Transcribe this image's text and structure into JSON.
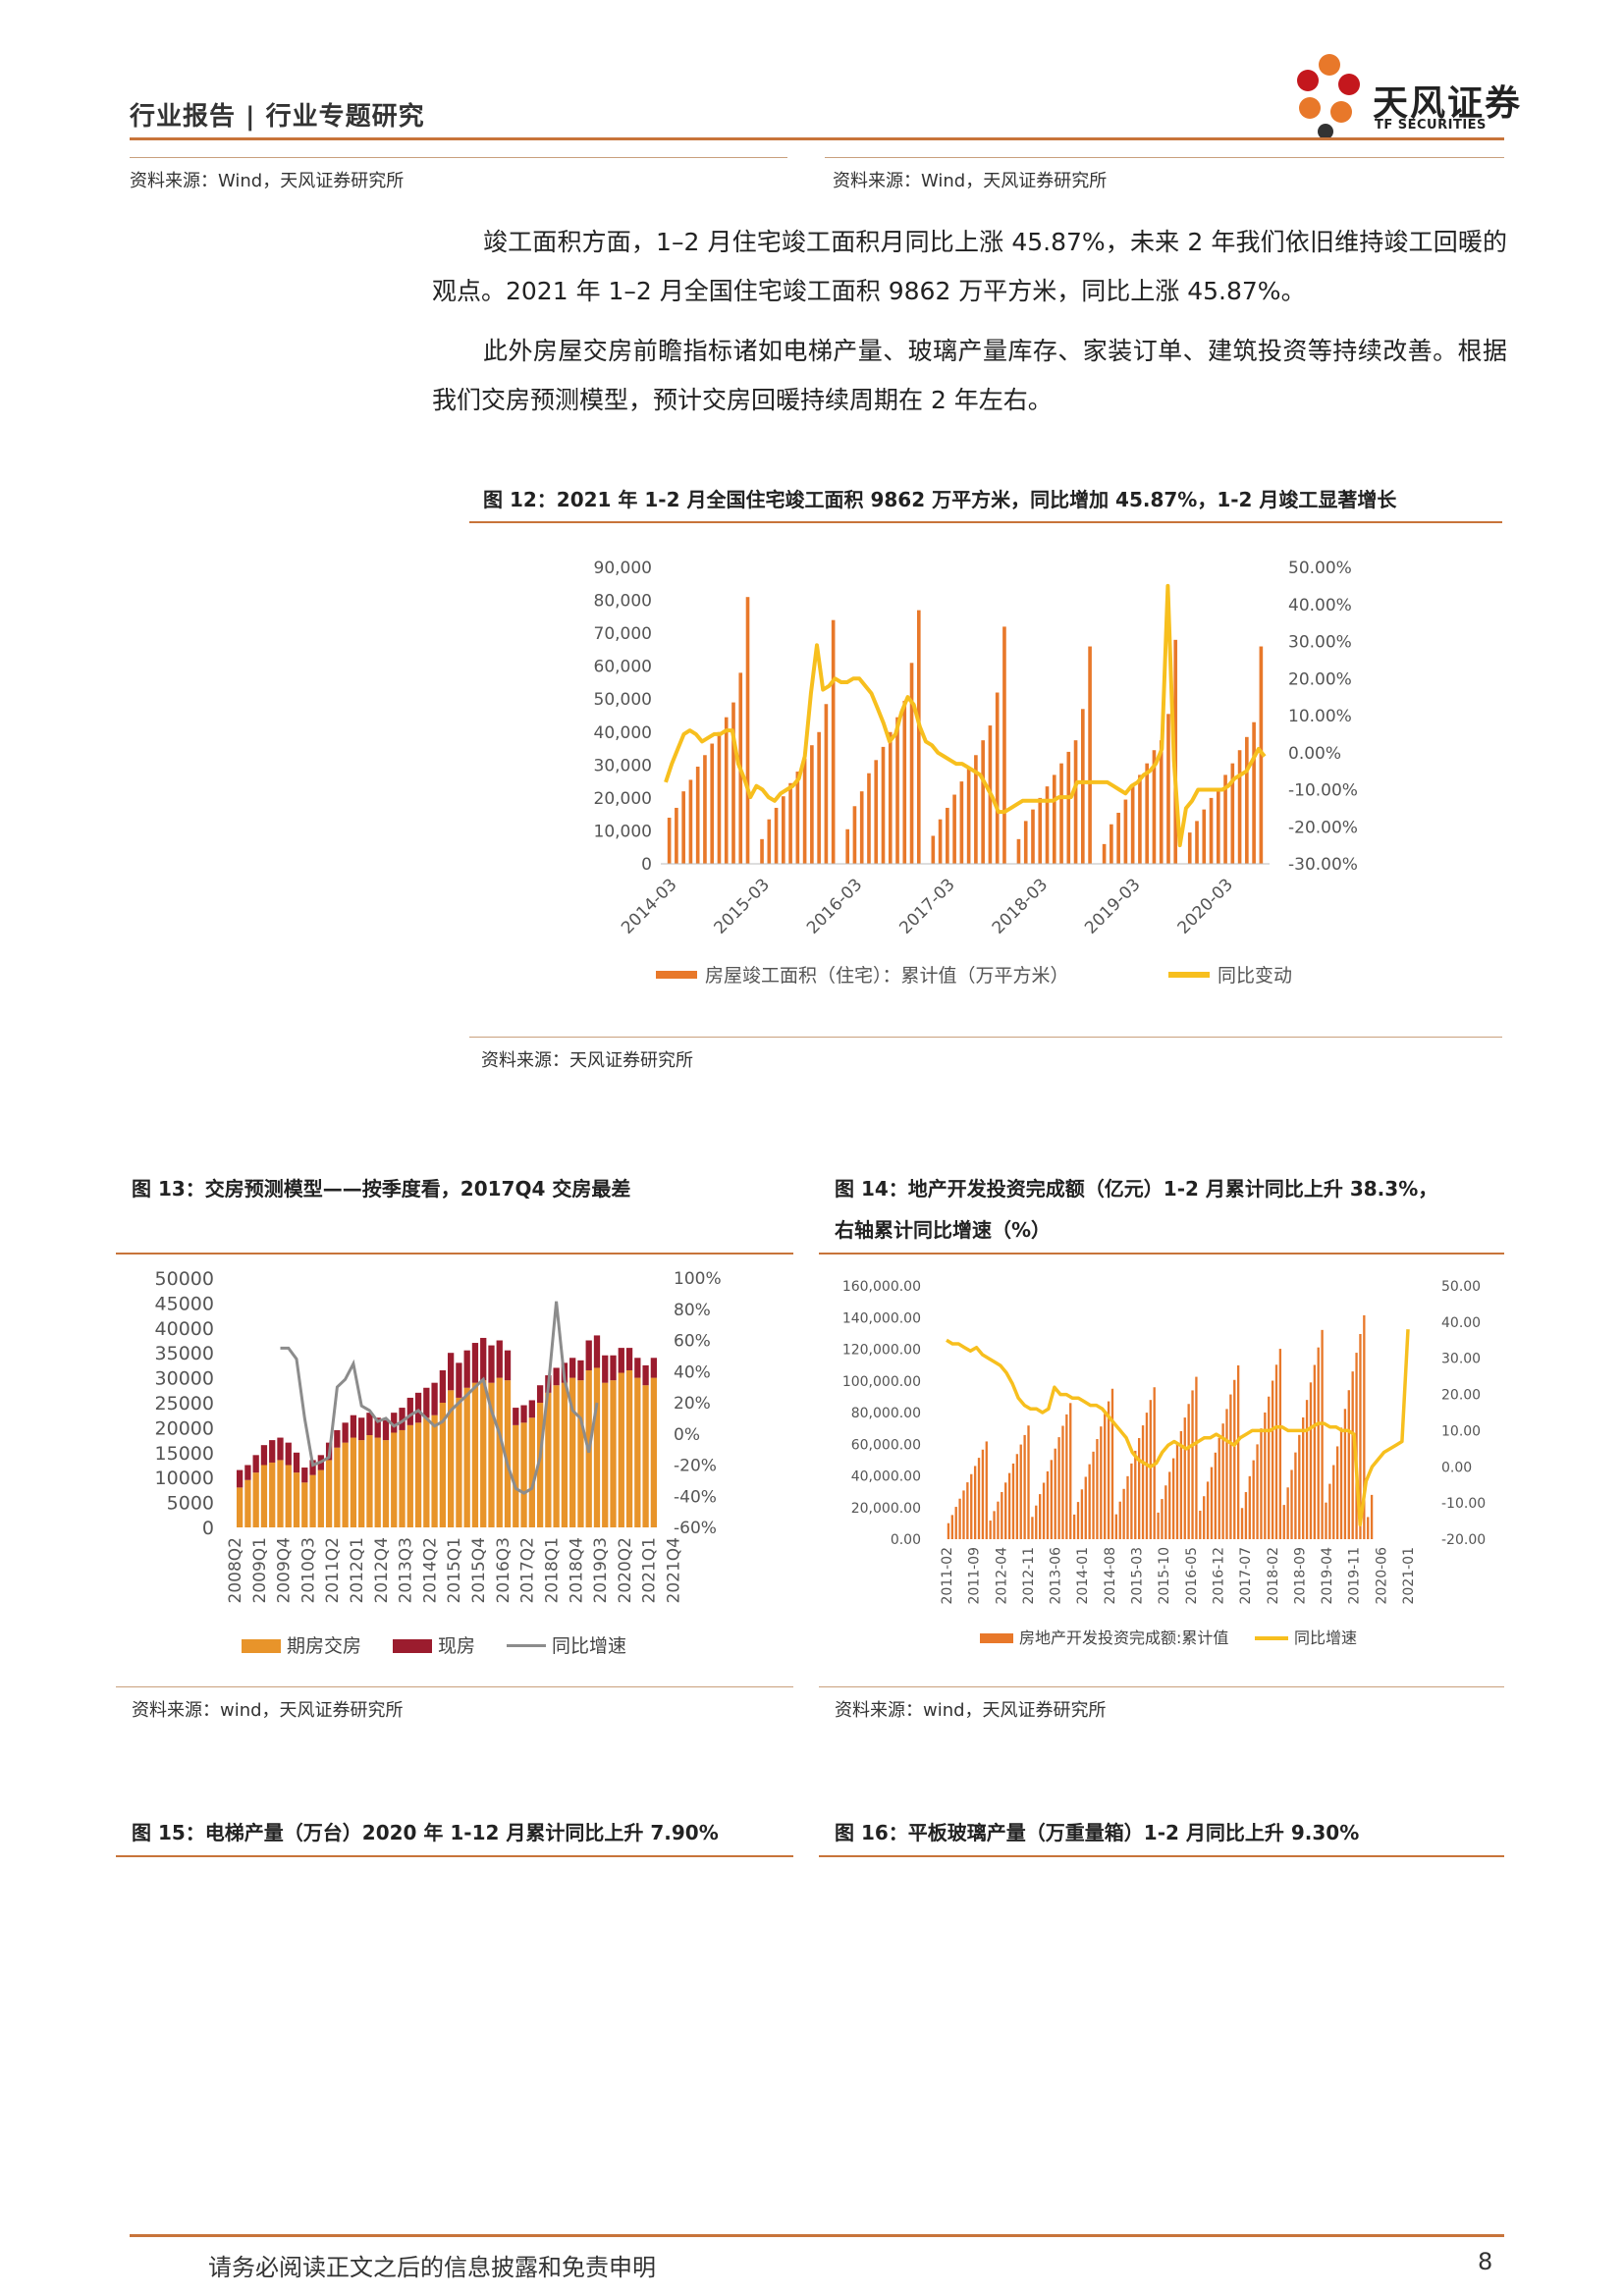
{
  "header": {
    "left": "行业报告 | 行业专题研究",
    "logo_cn": "天风证券",
    "logo_en": "TF SECURITIES"
  },
  "top_sources": {
    "left": "资料来源：Wind，天风证券研究所",
    "right": "资料来源：Wind，天风证券研究所"
  },
  "paragraphs": [
    "竣工面积方面，1–2 月住宅竣工面积月同比上涨 45.87%，未来 2 年我们依旧维持竣工回暖的观点。2021 年 1–2 月全国住宅竣工面积 9862 万平方米，同比上涨 45.87%。",
    "此外房屋交房前瞻指标诸如电梯产量、玻璃产量库存、家装订单、建筑投资等持续改善。根据我们交房预测模型，预计交房回暖持续周期在 2 年左右。"
  ],
  "fig12": {
    "title": "图 12：2021 年 1-2 月全国住宅竣工面积 9862 万平方米，同比增加 45.87%，1-2 月竣工显著增长",
    "source": "资料来源：天风证券研究所",
    "chart_data": {
      "type": "bar",
      "left_ticks": [
        "90,000",
        "80,000",
        "70,000",
        "60,000",
        "50,000",
        "40,000",
        "30,000",
        "20,000",
        "10,000",
        "0"
      ],
      "right_ticks": [
        "50.00%",
        "40.00%",
        "30.00%",
        "20.00%",
        "10.00%",
        "0.00%",
        "-10.00%",
        "-20.00%",
        "-30.00%"
      ],
      "x_ticks": [
        "2014-03",
        "2015-03",
        "2016-03",
        "2017-03",
        "2018-03",
        "2019-03",
        "2020-03"
      ],
      "ylim": [
        0,
        90000
      ],
      "y2lim": [
        -30,
        50
      ],
      "bar_color": "#e8782a",
      "line_color": "#f7bf1e",
      "series": [
        {
          "name": "房屋竣工面积（住宅）：累计值（万平方米）",
          "values": [
            14000,
            17000,
            22000,
            25500,
            29500,
            33000,
            36500,
            40000,
            44500,
            49000,
            58000,
            81000,
            null,
            7500,
            13500,
            17000,
            20500,
            24500,
            28000,
            32000,
            36000,
            40000,
            48500,
            74000,
            null,
            10500,
            17500,
            22000,
            27500,
            31500,
            35500,
            40000,
            44500,
            49500,
            61000,
            77000,
            null,
            8500,
            13500,
            17000,
            21000,
            25000,
            29000,
            33000,
            37500,
            42000,
            52000,
            72000,
            null,
            7500,
            13000,
            16500,
            20000,
            23500,
            27000,
            30500,
            34000,
            37500,
            47000,
            66000,
            null,
            6000,
            12000,
            15500,
            19500,
            23500,
            27000,
            30500,
            34500,
            37500,
            45500,
            68000,
            null,
            9500,
            13000,
            16500,
            20000,
            23000,
            27000,
            30500,
            34500,
            38500,
            43000,
            66000
          ],
          "axis": "left"
        },
        {
          "name": "同比变动",
          "values": [
            -8,
            -3,
            1,
            5,
            6,
            5,
            3,
            4,
            5,
            5,
            6,
            6,
            -3,
            -7,
            -12,
            -9,
            -10,
            -12,
            -13,
            -11,
            -10,
            -9,
            -7,
            -1,
            16,
            29,
            17,
            18,
            20,
            19,
            19,
            20,
            20,
            18,
            16,
            12,
            8,
            3,
            5,
            11,
            15,
            13,
            7,
            3,
            2,
            0,
            -1,
            -2,
            -3,
            -3,
            -4,
            -5,
            -6,
            -9,
            -12,
            -16,
            -16,
            -15,
            -14,
            -13,
            -13,
            -13,
            -13,
            -13,
            -13,
            -12,
            -12,
            -12,
            -8,
            -8,
            -8,
            -8,
            -8,
            -8,
            -9,
            -10,
            -11,
            -9,
            -8,
            -6,
            -5,
            -3,
            1,
            45,
            -2,
            -25,
            -15,
            -13,
            -10,
            -10,
            -10,
            -10,
            -10,
            -9,
            -7,
            -6,
            -5,
            -2,
            1,
            -1
          ],
          "axis": "right"
        }
      ]
    }
  },
  "fig13": {
    "title": "图 13：交房预测模型——按季度看，2017Q4 交房最差",
    "source": "资料来源：wind，天风证券研究所",
    "chart_data": {
      "type": "bar",
      "left_ticks": [
        "50000",
        "45000",
        "40000",
        "35000",
        "30000",
        "25000",
        "20000",
        "15000",
        "10000",
        "5000",
        "0"
      ],
      "right_ticks": [
        "100%",
        "80%",
        "60%",
        "40%",
        "20%",
        "0%",
        "-20%",
        "-40%",
        "-60%"
      ],
      "x_ticks": [
        "2008Q2",
        "2009Q1",
        "2009Q4",
        "2010Q3",
        "2011Q2",
        "2012Q1",
        "2012Q4",
        "2013Q3",
        "2014Q2",
        "2015Q1",
        "2015Q4",
        "2016Q3",
        "2017Q2",
        "2018Q1",
        "2018Q4",
        "2019Q3",
        "2020Q2",
        "2021Q1",
        "2021Q4"
      ],
      "ylim": [
        0,
        50000
      ],
      "y2lim": [
        -60,
        100
      ],
      "series": [
        {
          "name": "期房交房",
          "color": "#e8942a",
          "values": [
            8000,
            9500,
            11000,
            12500,
            13000,
            13500,
            12500,
            11000,
            9000,
            10500,
            11500,
            13500,
            16000,
            17000,
            18000,
            17500,
            18500,
            18000,
            17500,
            19000,
            19500,
            20500,
            21000,
            22000,
            22500,
            25000,
            27500,
            26000,
            28000,
            29000,
            29500,
            29000,
            30000,
            29500,
            20500,
            21000,
            22000,
            25000,
            27000,
            28500,
            29000,
            30000,
            29500,
            31500,
            32000,
            29000,
            29500,
            31000,
            31500,
            30000,
            28500,
            30000
          ]
        },
        {
          "name": "现房",
          "color": "#9b1c2e",
          "values": [
            3500,
            3000,
            3500,
            4000,
            4500,
            4500,
            4500,
            4000,
            3000,
            3000,
            3000,
            3500,
            3500,
            4000,
            4500,
            4500,
            4500,
            4000,
            4000,
            4000,
            4500,
            5500,
            6000,
            6000,
            6500,
            6500,
            7500,
            7000,
            7500,
            8000,
            8500,
            7500,
            7500,
            6000,
            3500,
            3500,
            3500,
            3500,
            3500,
            3500,
            4000,
            4000,
            4000,
            6000,
            6500,
            5500,
            5000,
            5000,
            4500,
            4000,
            4000,
            4000
          ]
        },
        {
          "name": "同比增速",
          "color": "#8c8c8c",
          "values": [
            null,
            null,
            null,
            null,
            null,
            55,
            55,
            48,
            10,
            -20,
            -18,
            -15,
            30,
            35,
            45,
            18,
            15,
            8,
            10,
            5,
            8,
            12,
            15,
            10,
            5,
            8,
            15,
            20,
            25,
            30,
            35,
            15,
            0,
            -20,
            -35,
            -38,
            -35,
            -15,
            30,
            85,
            35,
            15,
            10,
            -12,
            20,
            null,
            null,
            null,
            null,
            null,
            null,
            null
          ]
        }
      ]
    }
  },
  "fig14": {
    "title_line1": "图 14：地产开发投资完成额（亿元）1-2 月累计同比上升 38.3%，",
    "title_line2": "右轴累计同比增速（%）",
    "source": "资料来源：wind，天风证券研究所",
    "chart_data": {
      "type": "bar",
      "left_ticks": [
        "160,000.00",
        "140,000.00",
        "120,000.00",
        "100,000.00",
        "80,000.00",
        "60,000.00",
        "40,000.00",
        "20,000.00",
        "0.00"
      ],
      "right_ticks": [
        "50.00",
        "40.00",
        "30.00",
        "20.00",
        "10.00",
        "0.00",
        "-10.00",
        "-20.00"
      ],
      "x_ticks": [
        "2011-02",
        "2011-09",
        "2012-04",
        "2012-11",
        "2013-06",
        "2014-01",
        "2014-08",
        "2015-03",
        "2015-10",
        "2016-05",
        "2016-12",
        "2017-07",
        "2018-02",
        "2018-09",
        "2019-04",
        "2019-11",
        "2020-06",
        "2021-01"
      ],
      "ylim": [
        0,
        160000
      ],
      "y2lim": [
        -20,
        50
      ],
      "series": [
        {
          "name": "房地产开发投资完成额:累计值",
          "color": "#e8782a"
        },
        {
          "name": "同比增速",
          "color": "#f7bf1e"
        }
      ]
    }
  },
  "fig15": {
    "title": "图 15：电梯产量（万台）2020 年 1-12 月累计同比上升 7.90%"
  },
  "fig16": {
    "title": "图 16：平板玻璃产量（万重量箱）1-2 月同比上升 9.30%"
  },
  "footer": {
    "disclaimer": "请务必阅读正文之后的信息披露和免责申明",
    "page": "8"
  }
}
